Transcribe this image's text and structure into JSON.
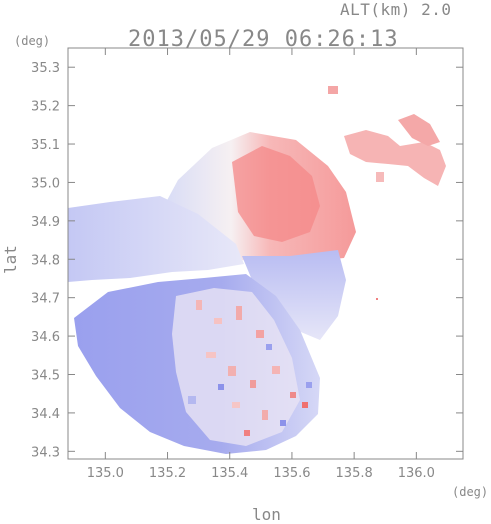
{
  "header": {
    "altitude": "ALT(km) 2.0",
    "timestamp": "2013/05/29 06:26:13"
  },
  "axes": {
    "xlabel": "lon",
    "ylabel": "lat",
    "x_unit": "(deg)",
    "y_unit": "(deg)",
    "x_ticks": [
      "135.0",
      "135.2",
      "135.4",
      "135.6",
      "135.8",
      "136.0"
    ],
    "y_ticks": [
      "35.3",
      "35.2",
      "35.1",
      "35.0",
      "34.9",
      "34.8",
      "34.7",
      "34.6",
      "34.5",
      "34.4",
      "34.3"
    ],
    "xlim": [
      134.88,
      136.15
    ],
    "ylim": [
      34.28,
      35.35
    ]
  },
  "colors": {
    "toward": "#8080ff",
    "away": "#ff6060",
    "frame": "#888888"
  }
}
